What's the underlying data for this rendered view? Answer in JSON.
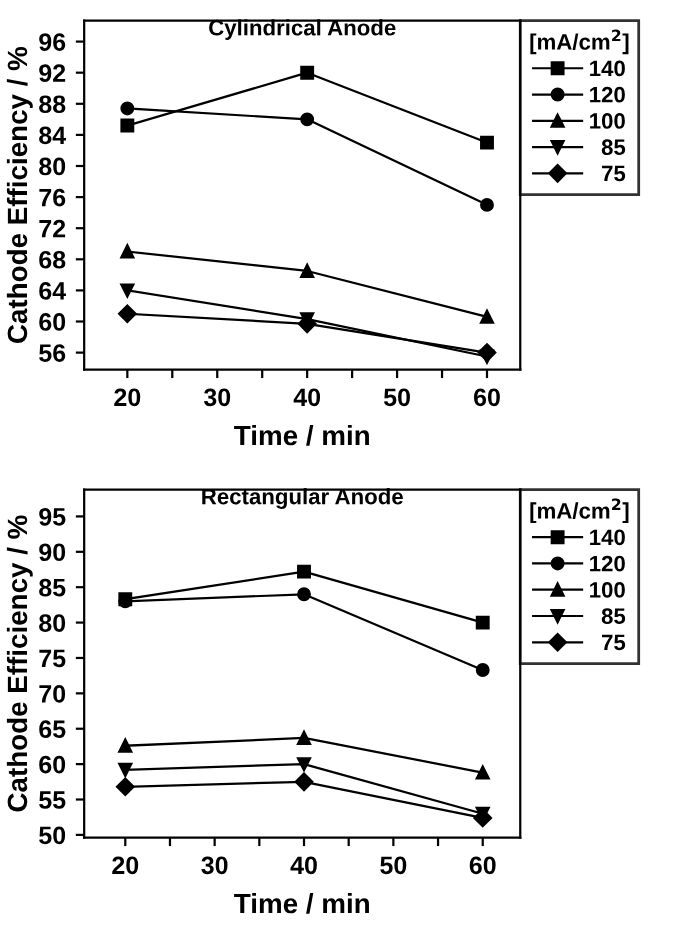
{
  "chart_data": [
    {
      "type": "line",
      "title": "Cylindrical Anode",
      "xlabel": "Time / min",
      "ylabel": "Cathode Efficiency / %",
      "legend_title": "[mA/cm$^{2}$]",
      "legend": "right",
      "x": [
        20,
        40,
        60
      ],
      "xlim": [
        15.2,
        63.7
      ],
      "ylim": [
        53.8,
        98.7
      ],
      "xticks": [
        20,
        {
          "value": 25,
          "label": null
        },
        30,
        {
          "value": 35,
          "label": null
        },
        40,
        {
          "value": 45,
          "label": null
        },
        50,
        {
          "value": 55,
          "label": null
        },
        60
      ],
      "yticks": [
        56,
        60,
        64,
        68,
        72,
        76,
        80,
        84,
        88,
        92,
        96
      ],
      "grid": false,
      "line_style": "solid",
      "series": [
        {
          "name": "140",
          "color": "#000000",
          "marker": "square",
          "values": [
            85.2,
            92,
            83
          ]
        },
        {
          "name": "120",
          "color": "#000000",
          "marker": "circle",
          "values": [
            87.4,
            86,
            75
          ]
        },
        {
          "name": "100",
          "color": "#000000",
          "marker": "triangle",
          "values": [
            69,
            66.5,
            60.6
          ]
        },
        {
          "name": "  85",
          "color": "#000000",
          "marker": "triangle_down",
          "values": [
            64,
            60.3,
            55.5
          ]
        },
        {
          "name": "  75",
          "color": "#000000",
          "marker": "diamond",
          "values": [
            61,
            59.7,
            56
          ]
        }
      ]
    },
    {
      "type": "line",
      "title": "Rectangular Anode",
      "xlabel": "Time / min",
      "ylabel": "Cathode Efficiency / %",
      "legend_title": "[mA/cm$^{2}$]",
      "legend": "right",
      "x": [
        20,
        40,
        60
      ],
      "xlim": [
        15.4,
        64.2
      ],
      "ylim": [
        49.6,
        98.8
      ],
      "xticks": [
        20,
        {
          "value": 25,
          "label": null
        },
        30,
        {
          "value": 35,
          "label": null
        },
        40,
        {
          "value": 45,
          "label": null
        },
        50,
        {
          "value": 55,
          "label": null
        },
        60
      ],
      "yticks": [
        50,
        55,
        60,
        65,
        70,
        75,
        80,
        85,
        90,
        95
      ],
      "grid": false,
      "line_style": "solid",
      "series": [
        {
          "name": "140",
          "color": "#000000",
          "marker": "square",
          "values": [
            83.3,
            87.2,
            80
          ]
        },
        {
          "name": "120",
          "color": "#000000",
          "marker": "circle",
          "values": [
            83,
            84,
            73.3
          ]
        },
        {
          "name": "100",
          "color": "#000000",
          "marker": "triangle",
          "values": [
            62.6,
            63.7,
            58.8
          ]
        },
        {
          "name": "  85",
          "color": "#000000",
          "marker": "triangle_down",
          "values": [
            59.2,
            60,
            53
          ]
        },
        {
          "name": "  75",
          "color": "#000000",
          "marker": "diamond",
          "values": [
            56.8,
            57.5,
            52.4
          ]
        }
      ]
    }
  ]
}
